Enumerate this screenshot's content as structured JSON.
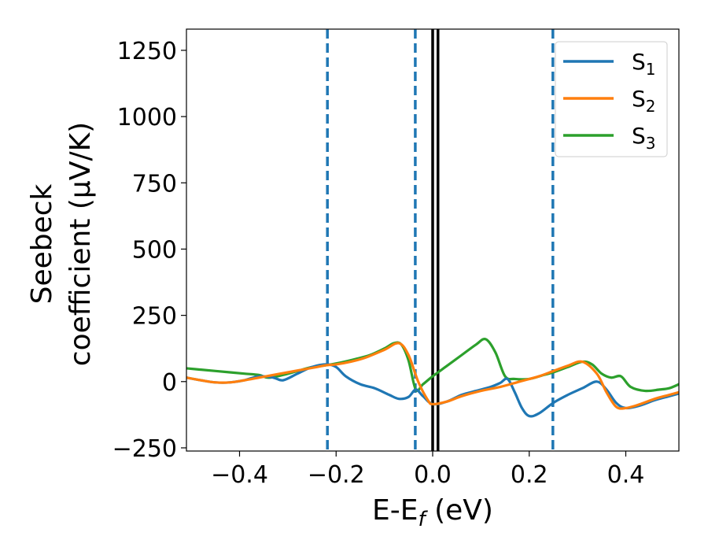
{
  "chart_data": {
    "type": "line",
    "xlabel": "E-E",
    "xlabel_sub": "f",
    "xlabel_suffix": " (eV)",
    "ylabel_line1": "Seebeck",
    "ylabel_line2": "coefficient  (μV/K)",
    "xlim": [
      -0.51,
      0.51
    ],
    "ylim": [
      -262,
      1330
    ],
    "xticks": [
      -0.4,
      -0.2,
      0.0,
      0.2,
      0.4
    ],
    "xtick_labels": [
      "−0.4",
      "−0.2",
      "0.0",
      "0.2",
      "0.4"
    ],
    "yticks": [
      -250,
      0,
      250,
      500,
      750,
      1000,
      1250
    ],
    "ytick_labels": [
      "−250",
      "0",
      "250",
      "500",
      "750",
      "1000",
      "1250"
    ],
    "grid": false,
    "legend_position": "top-right",
    "vlines_dashed": [
      -0.218,
      -0.036,
      0.249
    ],
    "vlines_solid": [
      0.0,
      0.011
    ],
    "series": [
      {
        "name": "S",
        "sub": "1",
        "color": "#1f77b4",
        "x": [
          -0.51,
          -0.48,
          -0.45,
          -0.42,
          -0.39,
          -0.36,
          -0.33,
          -0.31,
          -0.28,
          -0.25,
          -0.22,
          -0.2,
          -0.18,
          -0.15,
          -0.12,
          -0.09,
          -0.07,
          -0.05,
          -0.035,
          -0.02,
          0.0,
          0.03,
          0.06,
          0.09,
          0.12,
          0.14,
          0.155,
          0.17,
          0.185,
          0.2,
          0.22,
          0.25,
          0.28,
          0.31,
          0.34,
          0.36,
          0.38,
          0.4,
          0.43,
          0.46,
          0.49,
          0.51
        ],
        "y": [
          15,
          5,
          -3,
          -3,
          5,
          20,
          15,
          5,
          30,
          55,
          65,
          55,
          20,
          -10,
          -25,
          -50,
          -65,
          -58,
          -30,
          -55,
          -85,
          -75,
          -50,
          -35,
          -20,
          -5,
          10,
          -40,
          -100,
          -130,
          -120,
          -80,
          -50,
          -25,
          0,
          -30,
          -80,
          -100,
          -90,
          -70,
          -55,
          -45
        ]
      },
      {
        "name": "S",
        "sub": "2",
        "color": "#ff7f0e",
        "x": [
          -0.51,
          -0.48,
          -0.45,
          -0.42,
          -0.39,
          -0.36,
          -0.33,
          -0.3,
          -0.27,
          -0.24,
          -0.22,
          -0.2,
          -0.17,
          -0.14,
          -0.1,
          -0.07,
          -0.05,
          -0.03,
          -0.01,
          0.0,
          0.03,
          0.06,
          0.1,
          0.14,
          0.18,
          0.22,
          0.25,
          0.28,
          0.31,
          0.34,
          0.36,
          0.38,
          0.4,
          0.43,
          0.46,
          0.49,
          0.51
        ],
        "y": [
          15,
          5,
          -3,
          -3,
          5,
          15,
          25,
          35,
          45,
          55,
          62,
          65,
          75,
          90,
          120,
          145,
          100,
          0,
          -70,
          -85,
          -75,
          -55,
          -35,
          -20,
          0,
          20,
          40,
          60,
          75,
          30,
          -40,
          -95,
          -100,
          -85,
          -65,
          -50,
          -40
        ]
      },
      {
        "name": "S",
        "sub": "3",
        "color": "#2ca02c",
        "x": [
          -0.51,
          -0.48,
          -0.45,
          -0.42,
          -0.39,
          -0.36,
          -0.34,
          -0.31,
          -0.28,
          -0.25,
          -0.22,
          -0.19,
          -0.16,
          -0.13,
          -0.1,
          -0.08,
          -0.065,
          -0.05,
          -0.035,
          -0.02,
          0.0,
          0.03,
          0.06,
          0.09,
          0.11,
          0.13,
          0.15,
          0.17,
          0.2,
          0.23,
          0.25,
          0.28,
          0.31,
          0.33,
          0.35,
          0.37,
          0.39,
          0.41,
          0.44,
          0.47,
          0.49,
          0.51
        ],
        "y": [
          50,
          45,
          40,
          35,
          30,
          25,
          15,
          25,
          40,
          55,
          62,
          72,
          85,
          100,
          125,
          145,
          140,
          80,
          -30,
          -10,
          20,
          60,
          100,
          140,
          160,
          110,
          20,
          10,
          10,
          25,
          35,
          55,
          75,
          65,
          30,
          15,
          20,
          -20,
          -35,
          -30,
          -25,
          -10
        ]
      }
    ]
  }
}
